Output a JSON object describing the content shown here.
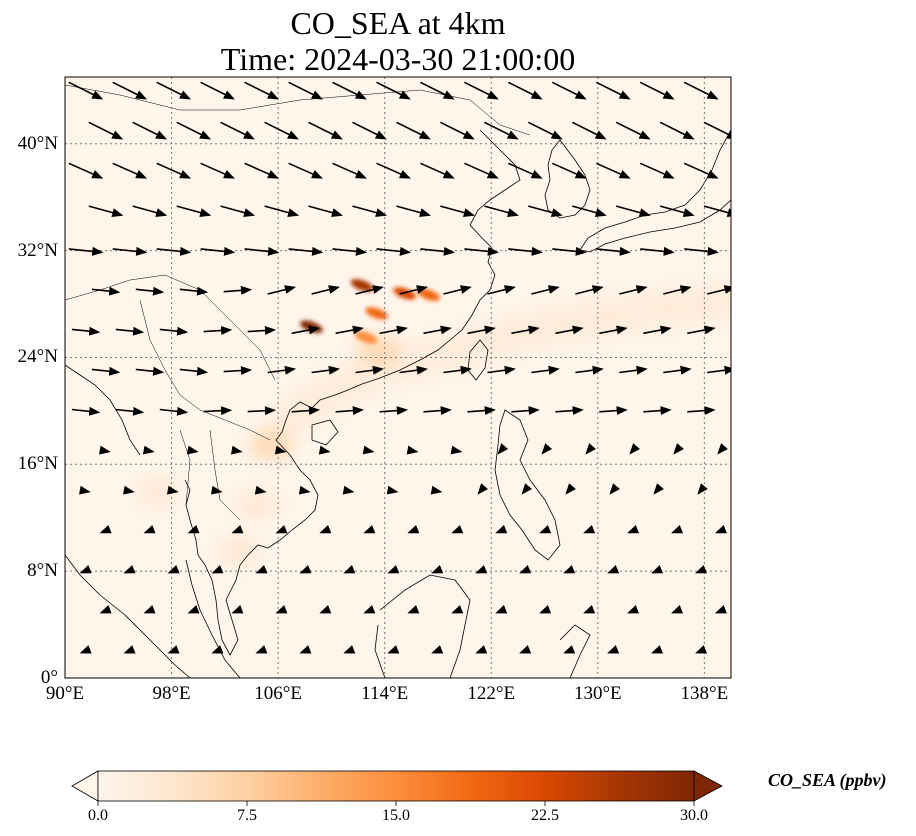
{
  "chart_data": {
    "type": "heatmap",
    "title": "CO_SEA at 4km",
    "subtitle": "Time: 2024-03-30 21:00:00",
    "variable": "CO_SEA",
    "units": "ppbv",
    "map_extent": {
      "lon_min": 90,
      "lon_max": 140,
      "lat_min": 0,
      "lat_max": 45
    },
    "x_ticks": [
      {
        "value": 90,
        "label": "90°E"
      },
      {
        "value": 98,
        "label": "98°E"
      },
      {
        "value": 106,
        "label": "106°E"
      },
      {
        "value": 114,
        "label": "114°E"
      },
      {
        "value": 122,
        "label": "122°E"
      },
      {
        "value": 130,
        "label": "130°E"
      },
      {
        "value": 138,
        "label": "138°E"
      }
    ],
    "y_ticks": [
      {
        "value": 0,
        "label": "0°"
      },
      {
        "value": 8,
        "label": "8°N"
      },
      {
        "value": 16,
        "label": "16°N"
      },
      {
        "value": 24,
        "label": "24°N"
      },
      {
        "value": 32,
        "label": "32°N"
      },
      {
        "value": 40,
        "label": "40°N"
      }
    ],
    "grid": true,
    "colormap": [
      "#fff5eb",
      "#fee6ce",
      "#fdd0a2",
      "#fdae6b",
      "#fd8d3c",
      "#f16913",
      "#d94801",
      "#a63603",
      "#7f2704"
    ],
    "colorbar": {
      "label": "CO_SEA (ppbv)",
      "range": [
        0,
        30
      ],
      "ticks": [
        {
          "value": 0,
          "label": "0.0"
        },
        {
          "value": 7.5,
          "label": "7.5"
        },
        {
          "value": 15,
          "label": "15.0"
        },
        {
          "value": 22.5,
          "label": "22.5"
        },
        {
          "value": 30,
          "label": "30.0"
        }
      ],
      "extend": "both"
    },
    "features": [
      {
        "type": "plume",
        "points": [
          [
            107,
            19.5
          ],
          [
            111,
            22
          ],
          [
            115,
            23.5
          ],
          [
            119,
            24.5
          ],
          [
            124,
            25.8
          ],
          [
            130,
            27
          ],
          [
            136,
            27.8
          ],
          [
            140,
            28.2
          ]
        ],
        "value": 3.5
      },
      {
        "type": "blob",
        "lon": 105.5,
        "lat": 17.5,
        "value": 6
      },
      {
        "type": "blob",
        "lon": 104.5,
        "lat": 13,
        "value": 5
      },
      {
        "type": "blob",
        "lon": 103,
        "lat": 9.5,
        "value": 3
      },
      {
        "type": "blob",
        "lon": 113.5,
        "lat": 24.5,
        "value": 7
      },
      {
        "type": "blob",
        "lon": 97,
        "lat": 14,
        "value": 2.5
      },
      {
        "type": "hotspot",
        "lon": 108.5,
        "lat": 26.3,
        "value": 30
      },
      {
        "type": "hotspot",
        "lon": 112.3,
        "lat": 29.4,
        "value": 28
      },
      {
        "type": "hotspot",
        "lon": 115.5,
        "lat": 28.8,
        "value": 22
      },
      {
        "type": "hotspot",
        "lon": 117.3,
        "lat": 28.7,
        "value": 20
      },
      {
        "type": "hotspot",
        "lon": 113.4,
        "lat": 27.3,
        "value": 18
      },
      {
        "type": "hotspot",
        "lon": 112.6,
        "lat": 25.5,
        "value": 15
      }
    ]
  }
}
